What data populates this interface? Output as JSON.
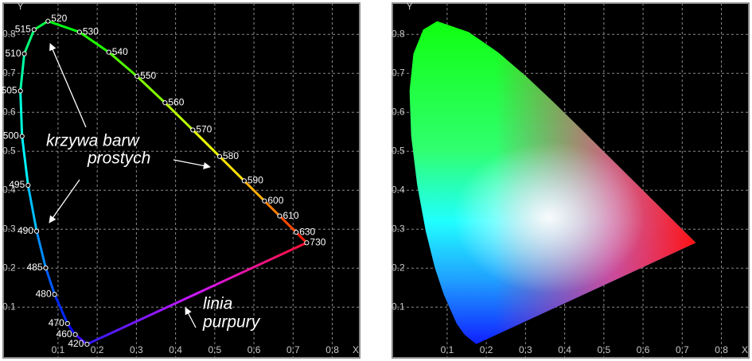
{
  "chart_data": [
    {
      "type": "line",
      "xlabel": "X",
      "ylabel": "Y",
      "xlim": [
        -0.04,
        0.87
      ],
      "ylim": [
        -0.03,
        0.88
      ],
      "xticks": [
        0.1,
        0.2,
        0.3,
        0.4,
        0.5,
        0.6,
        0.7,
        0.8
      ],
      "yticks": [
        0.1,
        0.2,
        0.3,
        0.4,
        0.5,
        0.6,
        0.7,
        0.8
      ],
      "grid": true,
      "series": [
        {
          "x": [
            0.1741,
            0.144,
            0.1241,
            0.0913,
            0.0687,
            0.0454,
            0.0235,
            0.0082,
            0.0039,
            0.0139,
            0.0389,
            0.0743,
            0.1547,
            0.2296,
            0.3016,
            0.3731,
            0.4441,
            0.5125,
            0.5752,
            0.627,
            0.6658,
            0.7079,
            0.7347
          ],
          "y": [
            0.005,
            0.0297,
            0.0578,
            0.1327,
            0.2007,
            0.295,
            0.4127,
            0.5384,
            0.6548,
            0.7502,
            0.812,
            0.8338,
            0.8059,
            0.7543,
            0.6923,
            0.6245,
            0.5547,
            0.4866,
            0.4242,
            0.3725,
            0.334,
            0.292,
            0.2653
          ],
          "labels": [
            "420",
            "460",
            "470",
            "480",
            "485",
            "490",
            "495",
            "500",
            "505",
            "510",
            "515",
            "520",
            "530",
            "540",
            "550",
            "560",
            "570",
            "580",
            "590",
            "600",
            "610",
            "630",
            "730"
          ]
        }
      ],
      "annotations": [
        "krzywa barw",
        "prostych",
        "linia",
        "purpury"
      ]
    },
    {
      "type": "area",
      "xlabel": "X",
      "ylabel": "Y",
      "xlim": [
        -0.04,
        0.87
      ],
      "ylim": [
        -0.03,
        0.88
      ],
      "xticks": [
        0.1,
        0.2,
        0.3,
        0.4,
        0.5,
        0.6,
        0.7,
        0.8
      ],
      "yticks": [
        0.1,
        0.2,
        0.3,
        0.4,
        0.5,
        0.6,
        0.7,
        0.8
      ],
      "grid": true,
      "series": [
        {
          "x": [
            0.1741,
            0.144,
            0.1241,
            0.0913,
            0.0687,
            0.0454,
            0.0235,
            0.0082,
            0.0039,
            0.0139,
            0.0389,
            0.0743,
            0.1547,
            0.2296,
            0.3016,
            0.3731,
            0.4441,
            0.5125,
            0.5752,
            0.627,
            0.6658,
            0.7079,
            0.7347
          ],
          "y": [
            0.005,
            0.0297,
            0.0578,
            0.1327,
            0.2007,
            0.295,
            0.4127,
            0.5384,
            0.6548,
            0.7502,
            0.812,
            0.8338,
            0.8059,
            0.7543,
            0.6923,
            0.6245,
            0.5547,
            0.4866,
            0.4242,
            0.3725,
            0.334,
            0.292,
            0.2653
          ]
        }
      ]
    }
  ]
}
